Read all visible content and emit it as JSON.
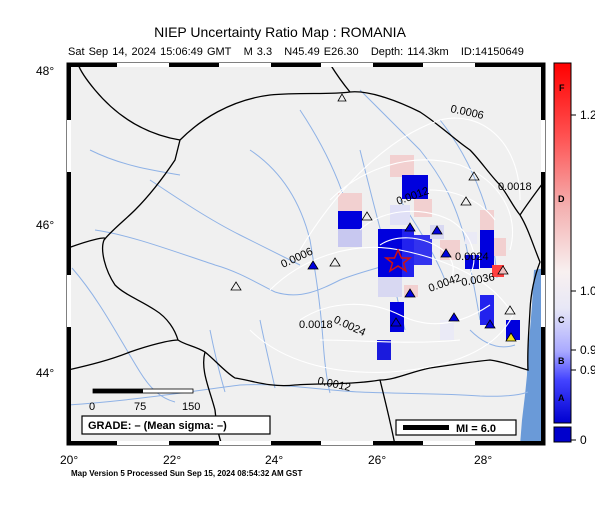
{
  "map": {
    "title": "NIEP Uncertainty Ratio Map : ROMANIA",
    "event": {
      "datetime": "Sat Sep 14, 2024 15:06:49 GMT",
      "magnitude": "M 3.3",
      "location": "N45.49 E26.30",
      "depth": "Depth: 114.3km",
      "id": "ID:14150649"
    },
    "lat_labels": [
      "48°",
      "46°",
      "44°"
    ],
    "lon_labels": [
      "20°",
      "22°",
      "24°",
      "26°",
      "28°"
    ],
    "contour_labels": [
      "0.0006",
      "0.0012",
      "0.0018",
      "0.0006",
      "0.0024",
      "0.0018",
      "0.0012",
      "0.0036",
      "0.0042",
      "0.0024"
    ],
    "scale_bar": {
      "labels": [
        "0",
        "75",
        "150"
      ]
    },
    "grade_box": "GRADE: – (Mean sigma: –)",
    "mi_legend": "MI = 6.0",
    "colorbar": {
      "letters": [
        "F",
        "D",
        "C",
        "B",
        "A"
      ],
      "values": [
        "1.2",
        "1.0",
        "0.9",
        "0.9",
        "0"
      ]
    },
    "footer": "Map Version 5 Processed Sun Sep 15, 2024 08:54:32 AM GST",
    "colors": {
      "land": "#f0f0f0",
      "water": "#6a9ad8",
      "river": "#8fb2e6",
      "contour": "#ffffff",
      "epicenter": "#d01010",
      "high": "#ff0000",
      "low": "#0000cc"
    }
  }
}
